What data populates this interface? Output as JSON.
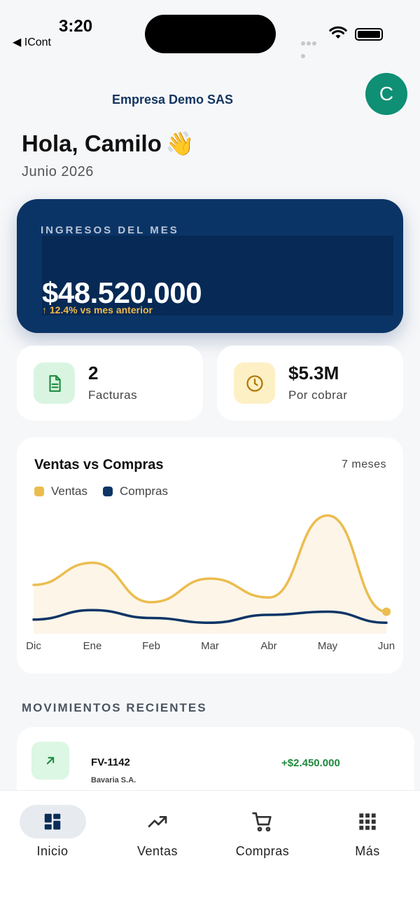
{
  "status_bar": {
    "time": "3:20",
    "back_app": "◀ ICont"
  },
  "header": {
    "company": "Empresa Demo SAS",
    "avatar_initial": "C",
    "avatar_color": "#0f8f74"
  },
  "greeting": {
    "text": "Hola, Camilo",
    "emoji": "👋",
    "period": "Junio 2026"
  },
  "income": {
    "label": "INGRESOS DEL MES",
    "amount": "$48.520.000",
    "change": "↑ 12.4% vs mes anterior",
    "card_color": "#0b3466",
    "change_color": "#f0b84a"
  },
  "stats": [
    {
      "value": "2",
      "label": "Facturas",
      "icon": "document-icon",
      "color": "#1e8a3d"
    },
    {
      "value": "$5.3M",
      "label": "Por cobrar",
      "icon": "clock-icon",
      "color": "#b07a0c"
    }
  ],
  "chart": {
    "title": "Ventas vs Compras",
    "range": "7 meses",
    "legend": [
      {
        "name": "Ventas",
        "color": "#ebbd4f"
      },
      {
        "name": "Compras",
        "color": "#0d3566"
      }
    ]
  },
  "chart_data": {
    "type": "area",
    "categories": [
      "Dic",
      "Ene",
      "Feb",
      "Mar",
      "Abr",
      "May",
      "Jun"
    ],
    "series": [
      {
        "name": "Ventas",
        "values": [
          62,
          90,
          40,
          70,
          46,
          150,
          28
        ]
      },
      {
        "name": "Compras",
        "values": [
          18,
          30,
          20,
          14,
          24,
          28,
          14
        ]
      }
    ],
    "ylim": [
      0,
      160
    ],
    "grid": false,
    "legend_position": "top-left"
  },
  "recent": {
    "title": "MOVIMIENTOS RECIENTES",
    "items": [
      {
        "code": "FV-1142",
        "name": "Bavaria S.A.",
        "amount": "+$2.450.000",
        "icon": "arrow-up-right-icon"
      }
    ]
  },
  "tabs": [
    {
      "label": "Inicio",
      "icon": "dashboard-icon",
      "active": true
    },
    {
      "label": "Ventas",
      "icon": "trending-up-icon",
      "active": false
    },
    {
      "label": "Compras",
      "icon": "cart-icon",
      "active": false
    },
    {
      "label": "Más",
      "icon": "grid-icon",
      "active": false
    }
  ]
}
